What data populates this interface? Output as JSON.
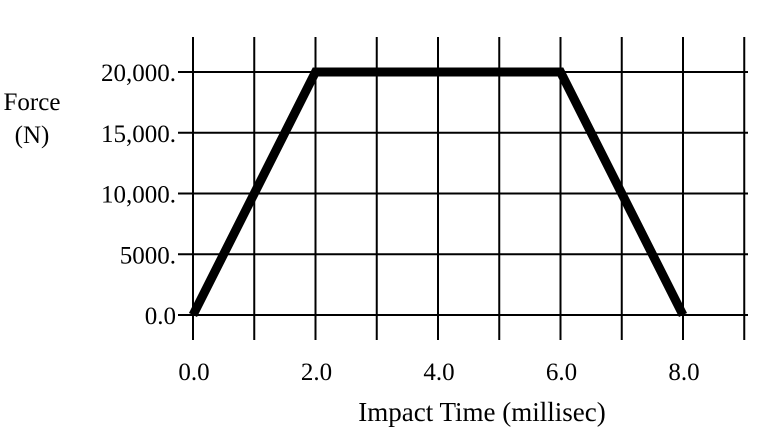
{
  "chart_data": {
    "type": "line",
    "title": "",
    "xlabel": "Impact Time (millisec)",
    "ylabel_lines": [
      "Force",
      "(N)"
    ],
    "x_tick_labels": [
      "0.0",
      "2.0",
      "4.0",
      "6.0",
      "8.0"
    ],
    "x_tick_values": [
      0,
      2,
      4,
      6,
      8
    ],
    "y_tick_labels": [
      "0.0",
      "5000.",
      "10,000.",
      "15,000.",
      "20,000."
    ],
    "y_tick_values": [
      0,
      5000,
      10000,
      15000,
      20000
    ],
    "xlim": [
      0,
      9
    ],
    "ylim": [
      0,
      20000
    ],
    "grid": true,
    "series": [
      {
        "x": [
          0,
          2,
          6,
          8
        ],
        "y": [
          0,
          20000,
          20000,
          0
        ]
      }
    ]
  }
}
